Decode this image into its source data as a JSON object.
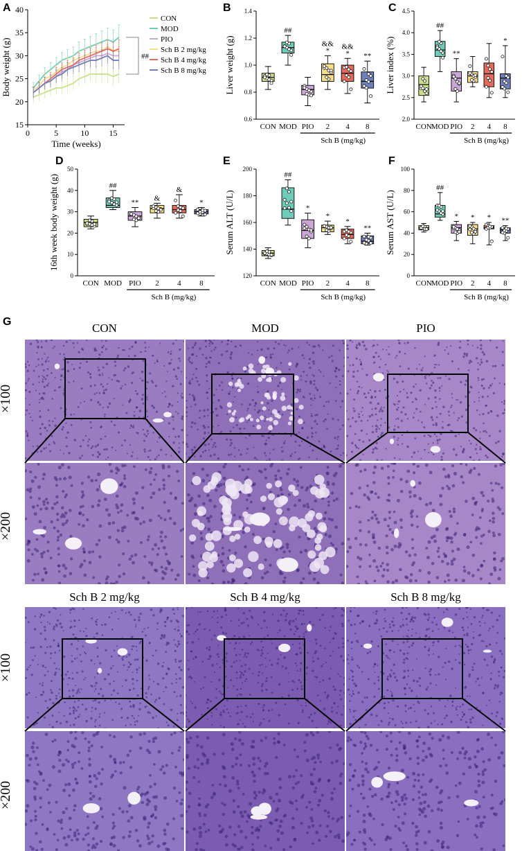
{
  "figure": {
    "panels": {
      "A": "A",
      "B": "B",
      "C": "C",
      "D": "D",
      "E": "E",
      "F": "F",
      "G": "G"
    },
    "colors": {
      "CON": "#c8e08c",
      "MOD": "#6fcbb8",
      "PIO": "#c9a6d6",
      "SchB2": "#f7dc8a",
      "SchB4": "#e46a5c",
      "SchB8": "#6f7fb7"
    },
    "histology": {
      "magnifications": [
        "×100",
        "×200"
      ],
      "row1_groups": [
        "CON",
        "MOD",
        "PIO"
      ],
      "row2_groups": [
        "Sch B 2 mg/kg",
        "Sch B 4 mg/kg",
        "Sch B 8 mg/kg"
      ]
    }
  },
  "chart_data": [
    {
      "panel": "A",
      "type": "line",
      "xlabel": "Time (weeks)",
      "ylabel": "Body weight (g)",
      "xlim": [
        0,
        17
      ],
      "ylim": [
        15,
        40
      ],
      "xticks": [
        "0",
        "5",
        "10",
        "15"
      ],
      "yticks": [
        "15",
        "20",
        "25",
        "30",
        "35",
        "40"
      ],
      "x": [
        1,
        2,
        3,
        4,
        5,
        6,
        7,
        8,
        9,
        10,
        11,
        12,
        13,
        14,
        15,
        16
      ],
      "series": [
        {
          "name": "CON",
          "values": [
            21,
            21.5,
            22,
            22.5,
            23,
            23,
            23.5,
            24,
            25,
            25.5,
            26,
            26,
            26,
            26,
            25.5,
            26
          ]
        },
        {
          "name": "MOD",
          "values": [
            23,
            24.5,
            26,
            27,
            28,
            29,
            29.5,
            30,
            31,
            31.5,
            32,
            32.5,
            33,
            33.5,
            33,
            34
          ]
        },
        {
          "name": "PIO",
          "values": [
            22,
            23,
            24,
            24.5,
            25.5,
            26.5,
            27,
            28,
            28.5,
            29,
            29.5,
            30,
            30,
            30.5,
            30,
            30
          ]
        },
        {
          "name": "Sch B 2 mg/kg",
          "values": [
            22.5,
            23.5,
            25,
            25.5,
            26.5,
            27.5,
            28,
            29,
            29.5,
            30,
            30.5,
            31,
            31,
            32,
            31,
            31
          ]
        },
        {
          "name": "Sch B 4 mg/kg",
          "values": [
            22,
            23,
            24,
            25,
            26,
            27,
            27.5,
            28,
            29,
            29.5,
            30,
            30.5,
            31,
            31.5,
            31,
            31.5
          ]
        },
        {
          "name": "Sch B 8 mg/kg",
          "values": [
            22,
            23,
            24,
            24.5,
            25.5,
            26,
            27,
            27.5,
            28,
            28.5,
            29,
            29,
            29.5,
            30,
            29,
            29
          ]
        }
      ],
      "legend": [
        "CON",
        "MOD",
        "PIO",
        "Sch B 2 mg/kg",
        "Sch B 4 mg/kg",
        "Sch B 8 mg/kg"
      ],
      "annotation": "##"
    },
    {
      "panel": "B",
      "type": "box",
      "ylabel": "Liver weight (g)",
      "ylim": [
        0.6,
        1.4
      ],
      "yticks": [
        "0.6",
        "0.8",
        "1.0",
        "1.2",
        "1.4"
      ],
      "categories": [
        "CON",
        "MOD",
        "PIO",
        "2",
        "4",
        "8"
      ],
      "group_label": "Sch B (mg/kg)",
      "boxes": [
        {
          "min": 0.82,
          "q1": 0.88,
          "median": 0.91,
          "q3": 0.94,
          "max": 0.99
        },
        {
          "min": 1.0,
          "q1": 1.09,
          "median": 1.13,
          "q3": 1.17,
          "max": 1.22
        },
        {
          "min": 0.7,
          "q1": 0.78,
          "median": 0.82,
          "q3": 0.85,
          "max": 0.91
        },
        {
          "min": 0.82,
          "q1": 0.88,
          "median": 0.93,
          "q3": 1.01,
          "max": 1.07
        },
        {
          "min": 0.79,
          "q1": 0.88,
          "median": 0.94,
          "q3": 1.0,
          "max": 1.05
        },
        {
          "min": 0.72,
          "q1": 0.83,
          "median": 0.88,
          "q3": 0.95,
          "max": 1.03
        }
      ],
      "marks": [
        "",
        "##",
        "",
        "&&\n*",
        "&&\n*",
        "**"
      ]
    },
    {
      "panel": "C",
      "type": "box",
      "ylabel": "Liver index (%)",
      "ylim": [
        2.0,
        4.5
      ],
      "yticks": [
        "2.0",
        "2.5",
        "3.0",
        "3.5",
        "4.0",
        "4.5"
      ],
      "categories": [
        "CON",
        "MOD",
        "PIO",
        "2",
        "4",
        "8"
      ],
      "group_label": "Sch B (mg/kg)",
      "boxes": [
        {
          "min": 2.4,
          "q1": 2.55,
          "median": 2.8,
          "q3": 3.0,
          "max": 3.2
        },
        {
          "min": 3.1,
          "q1": 3.45,
          "median": 3.6,
          "q3": 3.8,
          "max": 4.05
        },
        {
          "min": 2.4,
          "q1": 2.65,
          "median": 2.95,
          "q3": 3.1,
          "max": 3.4
        },
        {
          "min": 2.75,
          "q1": 2.85,
          "median": 3.0,
          "q3": 3.1,
          "max": 3.45
        },
        {
          "min": 2.5,
          "q1": 2.75,
          "median": 3.05,
          "q3": 3.3,
          "max": 3.75
        },
        {
          "min": 2.5,
          "q1": 2.7,
          "median": 2.95,
          "q3": 3.05,
          "max": 3.7
        }
      ],
      "marks": [
        "",
        "##",
        "**",
        "",
        "",
        "*"
      ]
    },
    {
      "panel": "D",
      "type": "box",
      "ylabel": "16th week body weight (g)",
      "ylim": [
        0,
        50
      ],
      "yticks": [
        "0",
        "10",
        "20",
        "30",
        "40",
        "50"
      ],
      "categories": [
        "CON",
        "MOD",
        "PIO",
        "2",
        "4",
        "8"
      ],
      "group_label": "Sch B (mg/kg)",
      "boxes": [
        {
          "min": 22,
          "q1": 23,
          "median": 25,
          "q3": 26.5,
          "max": 28
        },
        {
          "min": 31,
          "q1": 32,
          "median": 33,
          "q3": 36.5,
          "max": 40
        },
        {
          "min": 23,
          "q1": 26,
          "median": 28,
          "q3": 30,
          "max": 32
        },
        {
          "min": 27,
          "q1": 29.5,
          "median": 31.5,
          "q3": 33,
          "max": 34
        },
        {
          "min": 27,
          "q1": 29.5,
          "median": 31,
          "q3": 33,
          "max": 38
        },
        {
          "min": 28,
          "q1": 29,
          "median": 30,
          "q3": 31,
          "max": 32
        }
      ],
      "marks": [
        "",
        "##",
        "**",
        "&",
        "&",
        "*"
      ]
    },
    {
      "panel": "E",
      "type": "box",
      "ylabel": "Serum ALT (U/L)",
      "ylim": [
        120,
        200
      ],
      "yticks": [
        "120",
        "140",
        "160",
        "180",
        "200"
      ],
      "categories": [
        "CON",
        "MOD",
        "PIO",
        "2",
        "4",
        "8"
      ],
      "group_label": "Sch B (mg/kg)",
      "boxes": [
        {
          "min": 133,
          "q1": 135,
          "median": 137,
          "q3": 139,
          "max": 141
        },
        {
          "min": 158,
          "q1": 163,
          "median": 170,
          "q3": 186,
          "max": 192
        },
        {
          "min": 141,
          "q1": 148,
          "median": 154,
          "q3": 162,
          "max": 167
        },
        {
          "min": 151,
          "q1": 153,
          "median": 156,
          "q3": 158,
          "max": 161
        },
        {
          "min": 144,
          "q1": 148,
          "median": 151,
          "q3": 155,
          "max": 157
        },
        {
          "min": 143,
          "q1": 144,
          "median": 146,
          "q3": 150,
          "max": 152
        }
      ],
      "marks": [
        "",
        "##",
        "*",
        "*",
        "*",
        "**"
      ]
    },
    {
      "panel": "F",
      "type": "box",
      "ylabel": "Serum AST (U/L)",
      "ylim": [
        0,
        100
      ],
      "yticks": [
        "0",
        "20",
        "40",
        "60",
        "80",
        "100"
      ],
      "categories": [
        "CON",
        "MOD",
        "PIO",
        "2",
        "4",
        "8"
      ],
      "group_label": "Sch B (mg/kg)",
      "boxes": [
        {
          "min": 41,
          "q1": 43,
          "median": 45,
          "q3": 47,
          "max": 49
        },
        {
          "min": 52,
          "q1": 55,
          "median": 58,
          "q3": 66,
          "max": 78
        },
        {
          "min": 33,
          "q1": 40,
          "median": 45,
          "q3": 48,
          "max": 51
        },
        {
          "min": 30,
          "q1": 38,
          "median": 44,
          "q3": 48,
          "max": 50
        },
        {
          "min": 29,
          "q1": 44,
          "median": 45,
          "q3": 47,
          "max": 50
        },
        {
          "min": 33,
          "q1": 40,
          "median": 43,
          "q3": 45,
          "max": 47
        }
      ],
      "marks": [
        "",
        "##",
        "*",
        "*",
        "*",
        "**"
      ]
    }
  ]
}
